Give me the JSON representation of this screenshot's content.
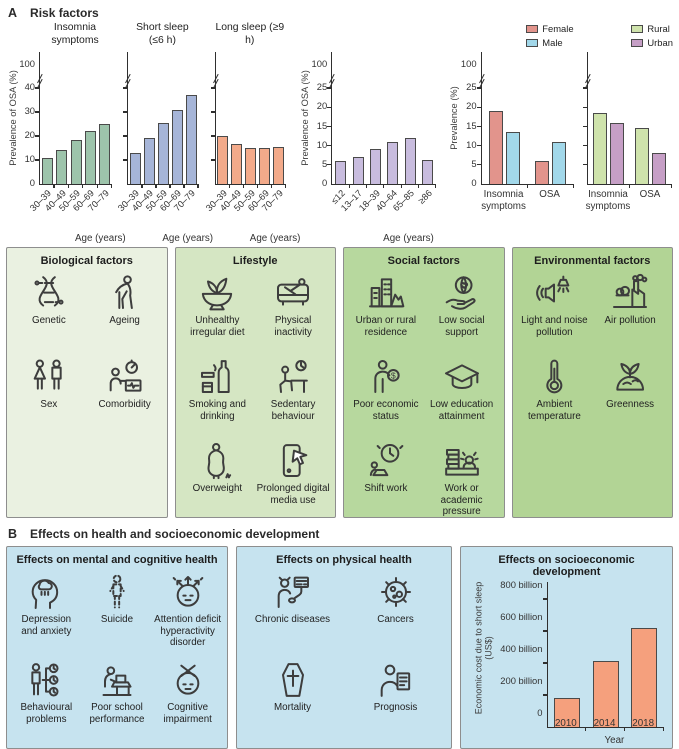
{
  "panel_a": {
    "label": "A",
    "title": "Risk factors",
    "factor_boxes": [
      {
        "title": "Biological factors",
        "bg": "#eaf1e1",
        "items": [
          {
            "icon": "dna-icon",
            "label": "Genetic"
          },
          {
            "icon": "ageing-icon",
            "label": "Ageing"
          },
          {
            "icon": "sex-icon",
            "label": "Sex"
          },
          {
            "icon": "comorbidity-icon",
            "label": "Comorbidity"
          }
        ]
      },
      {
        "title": "Lifestyle",
        "bg": "#d5e6c3",
        "items": [
          {
            "icon": "unhealthy-diet-icon",
            "label": "Unhealthy irregular diet"
          },
          {
            "icon": "physical-inactivity-icon",
            "label": "Physical inactivity"
          },
          {
            "icon": "smoking-drinking-icon",
            "label": "Smoking and drinking"
          },
          {
            "icon": "sedentary-behaviour-icon",
            "label": "Sedentary behaviour"
          },
          {
            "icon": "overweight-icon",
            "label": "Overweight"
          },
          {
            "icon": "digital-media-icon",
            "label": "Prolonged digital media use"
          }
        ]
      },
      {
        "title": "Social factors",
        "bg": "#b7d89e",
        "items": [
          {
            "icon": "urban-rural-icon",
            "label": "Urban or rural residence"
          },
          {
            "icon": "social-support-icon",
            "label": "Low social support"
          },
          {
            "icon": "economic-status-icon",
            "label": "Poor economic status"
          },
          {
            "icon": "education-icon",
            "label": "Low education attainment"
          },
          {
            "icon": "shift-work-icon",
            "label": "Shift work"
          },
          {
            "icon": "work-pressure-icon",
            "label": "Work or academic pressure"
          }
        ]
      },
      {
        "title": "Environmental factors",
        "bg": "#b2d495",
        "items": [
          {
            "icon": "light-noise-icon",
            "label": "Light and noise pollution"
          },
          {
            "icon": "air-pollution-icon",
            "label": "Air pollution"
          },
          {
            "icon": "temperature-icon",
            "label": "Ambient temperature"
          },
          {
            "icon": "greenness-icon",
            "label": "Greenness"
          }
        ]
      }
    ]
  },
  "panel_b": {
    "label": "B",
    "title": "Effects on health and socioeconomic development",
    "boxes": [
      {
        "title": "Effects on mental and cognitive health",
        "bg": "#c6e3ef",
        "items": [
          {
            "icon": "depression-icon",
            "label": "Depression and anxiety"
          },
          {
            "icon": "suicide-icon",
            "label": "Suicide"
          },
          {
            "icon": "adhd-icon",
            "label": "Attention deficit hyperactivity disorder"
          },
          {
            "icon": "behavioural-problems-icon",
            "label": "Behavioural problems"
          },
          {
            "icon": "school-performance-icon",
            "label": "Poor school performance"
          },
          {
            "icon": "cognitive-impairment-icon",
            "label": "Cognitive impairment"
          }
        ]
      },
      {
        "title": "Effects on physical health",
        "bg": "#c6e3ef",
        "items": [
          {
            "icon": "chronic-diseases-icon",
            "label": "Chronic diseases"
          },
          {
            "icon": "cancers-icon",
            "label": "Cancers"
          },
          {
            "icon": "mortality-icon",
            "label": "Mortality"
          },
          {
            "icon": "prognosis-icon",
            "label": "Prognosis"
          }
        ]
      },
      {
        "bg": "#c6e3ef",
        "chart_index": 6
      }
    ]
  },
  "chart_data": [
    {
      "type": "bar",
      "title": "Insomnia symptoms",
      "ylabel": "Prevalence of OSA (%)",
      "xlabel": "Age (years)",
      "categories": [
        "30–39",
        "40–49",
        "50–59",
        "60–69",
        "70–79"
      ],
      "values": [
        11,
        14,
        18.5,
        22,
        25
      ],
      "yticks": [
        0,
        10,
        20,
        30,
        40
      ],
      "ybreak_label": "100",
      "show_ytick_labels": true,
      "bar_color": "#9dc4ab"
    },
    {
      "type": "bar",
      "title": "Short sleep (≤6 h)",
      "xlabel": "Age (years)",
      "categories": [
        "30–39",
        "40–49",
        "50–59",
        "60–69",
        "70–79"
      ],
      "values": [
        13,
        19,
        25.5,
        31,
        37
      ],
      "yticks": [
        0,
        10,
        20,
        30,
        40
      ],
      "ybreak_label": "100",
      "show_ytick_labels": false,
      "bar_color": "#a6b5d8"
    },
    {
      "type": "bar",
      "title": "Long sleep (≥9 h)",
      "xlabel": "Age (years)",
      "categories": [
        "30–39",
        "40–49",
        "50–59",
        "60–69",
        "70–79"
      ],
      "values": [
        20,
        16.5,
        15,
        15,
        15.3
      ],
      "yticks": [
        0,
        10,
        20,
        30,
        40
      ],
      "ybreak_label": "100",
      "show_ytick_labels": false,
      "bar_color": "#f3aa8a"
    },
    {
      "type": "bar",
      "ylabel": "Prevalence of OSA (%)",
      "xlabel": "Age (years)",
      "categories": [
        "≤12",
        "13–17",
        "18–39",
        "40–64",
        "65–85",
        "≥86"
      ],
      "values": [
        6,
        7,
        9,
        11,
        12,
        6.2
      ],
      "yticks": [
        0,
        5,
        10,
        15,
        20,
        25
      ],
      "ybreak_label": "100",
      "show_ytick_labels": true,
      "bar_color": "#c8bcde"
    },
    {
      "type": "grouped-bar",
      "ylabel": "Prevalence (%)",
      "categories": [
        "Insomnia symptoms",
        "OSA"
      ],
      "series": [
        {
          "name": "Female",
          "color": "#e2948c",
          "values": [
            19,
            6
          ]
        },
        {
          "name": "Male",
          "color": "#a2d8ea",
          "values": [
            13.5,
            11
          ]
        }
      ],
      "yticks": [
        0,
        5,
        10,
        15,
        20,
        25
      ],
      "ybreak_label": "100",
      "show_ytick_labels": true
    },
    {
      "type": "grouped-bar",
      "categories": [
        "Insomnia symptoms",
        "OSA"
      ],
      "series": [
        {
          "name": "Rural",
          "color": "#cfe3ac",
          "values": [
            18.5,
            14.5
          ]
        },
        {
          "name": "Urban",
          "color": "#c69fc6",
          "values": [
            16,
            8
          ]
        }
      ],
      "yticks": [
        0,
        5,
        10,
        15,
        20,
        25
      ],
      "ybreak_label": "100",
      "show_ytick_labels": false
    },
    {
      "type": "bar",
      "title": "Effects on socioeconomic development",
      "ylabel": "Economic cost due to short sleep (US$)",
      "xlabel": "Year",
      "categories": [
        "2010",
        "2014",
        "2018"
      ],
      "values": [
        180,
        410,
        620
      ],
      "yticks": [
        0,
        200,
        400,
        600,
        800
      ],
      "ytick_labels": [
        "0",
        "200 billion",
        "400 billion",
        "600 billion",
        "800 billion"
      ],
      "show_ytick_labels": true,
      "bar_color": "#f5a07d",
      "ylim": [
        0,
        800
      ]
    }
  ]
}
